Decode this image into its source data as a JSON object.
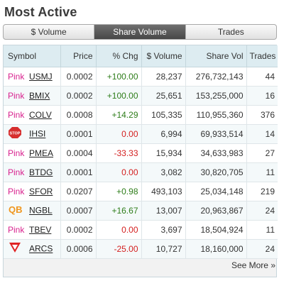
{
  "title": "Most Active",
  "tabs": [
    {
      "label": "$ Volume",
      "active": false
    },
    {
      "label": "Share Volume",
      "active": true
    },
    {
      "label": "Trades",
      "active": false
    }
  ],
  "columns": [
    "Symbol",
    "Price",
    "% Chg",
    "$ Volume",
    "Share Vol",
    "Trades"
  ],
  "colors": {
    "pink_tier": "#d8218e",
    "positive": "#2e7d1a",
    "negative": "#d42020",
    "stop": "#d62e2e",
    "qb": "#f0961e",
    "expert": "#e02424"
  },
  "rows": [
    {
      "tier": "pink",
      "tier_label": "Pink",
      "symbol": "USMJ",
      "price": "0.0002",
      "chg": "+100.00",
      "dir": "pos",
      "dollar_vol": "28,237",
      "share_vol": "276,732,143",
      "trades": "44"
    },
    {
      "tier": "pink",
      "tier_label": "Pink",
      "symbol": "BMIX",
      "price": "0.0002",
      "chg": "+100.00",
      "dir": "pos",
      "dollar_vol": "25,651",
      "share_vol": "153,255,000",
      "trades": "16"
    },
    {
      "tier": "pink",
      "tier_label": "Pink",
      "symbol": "COLV",
      "price": "0.0008",
      "chg": "+14.29",
      "dir": "pos",
      "dollar_vol": "105,335",
      "share_vol": "110,955,360",
      "trades": "376"
    },
    {
      "tier": "stop",
      "tier_label": "STOP",
      "symbol": "IHSI",
      "price": "0.0001",
      "chg": "0.00",
      "dir": "neg",
      "dollar_vol": "6,994",
      "share_vol": "69,933,514",
      "trades": "14"
    },
    {
      "tier": "pink",
      "tier_label": "Pink",
      "symbol": "PMEA",
      "price": "0.0004",
      "chg": "-33.33",
      "dir": "neg",
      "dollar_vol": "15,934",
      "share_vol": "34,633,983",
      "trades": "27"
    },
    {
      "tier": "pink",
      "tier_label": "Pink",
      "symbol": "BTDG",
      "price": "0.0001",
      "chg": "0.00",
      "dir": "neg",
      "dollar_vol": "3,082",
      "share_vol": "30,820,705",
      "trades": "11"
    },
    {
      "tier": "pink",
      "tier_label": "Pink",
      "symbol": "SFOR",
      "price": "0.0207",
      "chg": "+0.98",
      "dir": "pos",
      "dollar_vol": "493,103",
      "share_vol": "25,034,148",
      "trades": "219"
    },
    {
      "tier": "qb",
      "tier_label": "QB",
      "symbol": "NGBL",
      "price": "0.0007",
      "chg": "+16.67",
      "dir": "pos",
      "dollar_vol": "13,007",
      "share_vol": "20,963,867",
      "trades": "24"
    },
    {
      "tier": "pink",
      "tier_label": "Pink",
      "symbol": "TBEV",
      "price": "0.0002",
      "chg": "0.00",
      "dir": "neg",
      "dollar_vol": "3,697",
      "share_vol": "18,504,924",
      "trades": "11"
    },
    {
      "tier": "expert",
      "tier_label": "",
      "symbol": "ARCS",
      "price": "0.0006",
      "chg": "-25.00",
      "dir": "neg",
      "dollar_vol": "10,727",
      "share_vol": "18,160,000",
      "trades": "24"
    }
  ],
  "see_more": "See More »"
}
